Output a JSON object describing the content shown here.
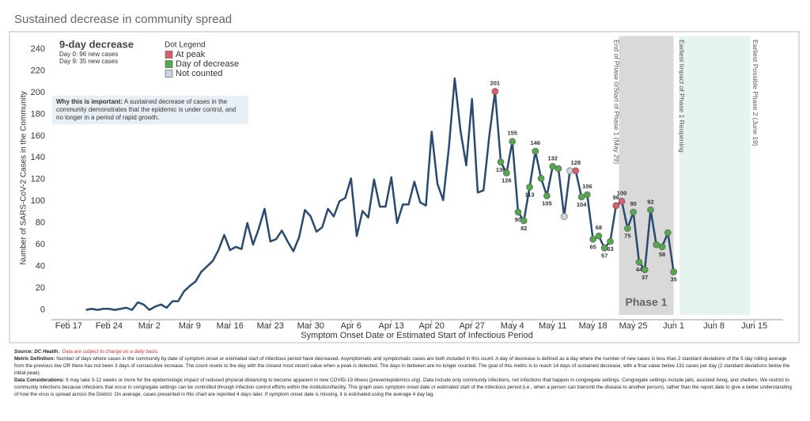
{
  "chart_data": {
    "type": "line",
    "title": "Sustained decrease in community spread",
    "y_label": "Number of SARS-CoV-2 Cases in the Community",
    "x_label": "Symptom Onset Date or Estimated Start of Infectious Period",
    "color": "#2b4a6e",
    "x": [
      3,
      4,
      5,
      6,
      7,
      8,
      9,
      10,
      11,
      12,
      13,
      14,
      15,
      16,
      17,
      18,
      19,
      20,
      21,
      22,
      23,
      24,
      25,
      26,
      27,
      28,
      29,
      30,
      31,
      32,
      33,
      34,
      35,
      36,
      37,
      38,
      39,
      40,
      41,
      42,
      43,
      44,
      45,
      46,
      47,
      48,
      49,
      50,
      51,
      52,
      53,
      54,
      55,
      56,
      57,
      58,
      59,
      60,
      61,
      62,
      63,
      64,
      65,
      66,
      67,
      68,
      69,
      70,
      71,
      72,
      73,
      74,
      75,
      76,
      77,
      78,
      79,
      80,
      81,
      82,
      83,
      84,
      85,
      86,
      87,
      88,
      89,
      90,
      91,
      92,
      93,
      94,
      95,
      96,
      97,
      98,
      99,
      100,
      101,
      102,
      103,
      104,
      105
    ],
    "values": [
      0,
      1,
      0,
      1,
      1,
      0,
      1,
      2,
      0,
      7,
      5,
      0,
      3,
      5,
      2,
      8,
      8,
      17,
      22,
      26,
      35,
      40,
      45,
      55,
      69,
      55,
      58,
      56,
      80,
      60,
      75,
      93,
      63,
      65,
      73,
      63,
      54,
      67,
      92,
      86,
      72,
      76,
      93,
      86,
      100,
      103,
      121,
      68,
      91,
      85,
      120,
      95,
      95,
      122,
      80,
      97,
      97,
      118,
      99,
      96,
      164,
      116,
      101,
      150,
      213,
      165,
      133,
      194,
      108,
      110,
      160,
      201,
      136,
      126,
      155,
      90,
      82,
      113,
      146,
      121,
      105,
      132,
      130,
      86,
      128,
      128,
      104,
      106,
      65,
      68,
      57,
      63,
      96,
      100,
      75,
      90,
      44,
      37,
      92,
      60,
      58,
      71,
      35
    ],
    "dot_status": [
      null,
      null,
      null,
      null,
      null,
      null,
      null,
      null,
      null,
      null,
      null,
      null,
      null,
      null,
      null,
      null,
      null,
      null,
      null,
      null,
      null,
      null,
      null,
      null,
      null,
      null,
      null,
      null,
      null,
      null,
      null,
      null,
      null,
      null,
      null,
      null,
      null,
      null,
      null,
      null,
      null,
      null,
      null,
      null,
      null,
      null,
      null,
      null,
      null,
      null,
      null,
      null,
      null,
      null,
      null,
      null,
      null,
      null,
      null,
      null,
      null,
      null,
      null,
      null,
      null,
      null,
      null,
      null,
      null,
      null,
      null,
      0,
      1,
      1,
      1,
      1,
      1,
      1,
      1,
      1,
      1,
      1,
      1,
      2,
      2,
      0,
      1,
      1,
      1,
      1,
      1,
      1,
      0,
      0,
      1,
      1,
      1,
      1,
      1,
      1,
      1,
      1,
      1
    ],
    "value_labels": [
      null,
      null,
      null,
      null,
      null,
      null,
      null,
      null,
      null,
      null,
      null,
      null,
      null,
      null,
      null,
      null,
      null,
      null,
      null,
      null,
      null,
      null,
      null,
      null,
      null,
      null,
      null,
      null,
      null,
      null,
      null,
      null,
      null,
      null,
      null,
      null,
      null,
      null,
      null,
      null,
      null,
      null,
      null,
      null,
      null,
      null,
      null,
      null,
      null,
      null,
      null,
      null,
      null,
      null,
      null,
      null,
      null,
      null,
      null,
      null,
      null,
      null,
      null,
      null,
      null,
      null,
      null,
      null,
      null,
      null,
      null,
      "201",
      "136",
      "126",
      "155",
      "90",
      "82",
      "113",
      "146",
      null,
      "105",
      "132",
      null,
      null,
      null,
      "128",
      "104",
      "106",
      "65",
      "68",
      "57",
      "63",
      "96",
      "100",
      "75",
      "90",
      "44",
      "37",
      "92",
      null,
      "58",
      null,
      "35"
    ],
    "xlim": [
      -3,
      124
    ],
    "xticks": [
      {
        "value": 0,
        "label": "Feb 17"
      },
      {
        "value": 7,
        "label": "Feb 24"
      },
      {
        "value": 14,
        "label": "Mar 2"
      },
      {
        "value": 21,
        "label": "Mar 9"
      },
      {
        "value": 28,
        "label": "Mar 16"
      },
      {
        "value": 35,
        "label": "Mar 23"
      },
      {
        "value": 42,
        "label": "Mar 30"
      },
      {
        "value": 49,
        "label": "Apr 6"
      },
      {
        "value": 56,
        "label": "Apr 13"
      },
      {
        "value": 63,
        "label": "Apr 20"
      },
      {
        "value": 70,
        "label": "Apr 27"
      },
      {
        "value": 77,
        "label": "May 4"
      },
      {
        "value": 84,
        "label": "May 11"
      },
      {
        "value": 91,
        "label": "May 18"
      },
      {
        "value": 98,
        "label": "May 25"
      },
      {
        "value": 105,
        "label": "Jun 1"
      },
      {
        "value": 112,
        "label": "Jun 8"
      },
      {
        "value": 119,
        "label": "Jun 15"
      }
    ],
    "ylim": [
      -9,
      252
    ],
    "yticks": [
      0,
      20,
      40,
      60,
      80,
      100,
      120,
      140,
      160,
      180,
      200,
      220,
      240
    ],
    "dot_legend": {
      "title": "Dot Legend",
      "items": [
        {
          "name": "At peak",
          "color": "#d9606a"
        },
        {
          "name": "Day of decrease",
          "color": "#55a84f"
        },
        {
          "name": "Not counted",
          "color": "#c9d6df"
        }
      ]
    },
    "info": {
      "title": "9-day decrease",
      "lines": [
        "Day 0: 96 new cases",
        "Day 9: 35 new cases"
      ]
    },
    "note": {
      "heading": "Why this is important:",
      "text": "A sustained decrease of cases in the community demonstrates that the epidemic is under control, and no longer in a period of rapid growth."
    },
    "regions": [
      {
        "label": "Phase 1",
        "start": 95.5,
        "end": 105,
        "color": "#d9d9d9"
      },
      {
        "start": 106,
        "end": 118.3,
        "color": "#e6f4ef"
      }
    ],
    "annotations": [
      {
        "label": "End of Phase 0/Start of Phase 1 (May 29)",
        "x": 95
      },
      {
        "label": "Earliest Impact of Phase 1 Reopening",
        "x": 106.3
      },
      {
        "label": "Earliest Possible Phase 2 (June 19)",
        "x": 119.1
      }
    ]
  },
  "footer": {
    "source": {
      "label": "Source: DC Health.",
      "text": "Data are subject to change on a daily basis."
    },
    "metric": {
      "label": "Metric Definition:",
      "text": "Number of days where cases in the community by date of symptom onset or estimated start of infectious period have decreased. Asymptomatic and symptomatic cases are both included in this count. A day of decrease is defined as a day where the number of new cases is less than 2 standard deviations of the 5 day rolling average from the previous low OR there has not been 3 days of consecutive increase. The count resets to the day with the closest most recent value when a peak is detected. The days in between are no longer counted. The goal of this metric is to reach 14 days of sustained decrease, with a final value below 131 cases per day (2 standard deviations below the initial peak)."
    },
    "considerations": {
      "label": "Data Considerations:",
      "text": "It may take 3-12 weeks or more for the epidemiologic impact of reduced physical distancing to become apparent in new COVID-19 illness (preventepidemics.org). Data include only community infections, not infections that happen in congregate settings. Congregate settings include jails, assisted living, and shelters. We restrict to community infections because infections that occur in congregate settings can be controlled through infection control efforts within the institution/facility. This graph uses symptom onset date or estimated start of the infectious period (i.e., when a person can transmit the disease to another person), rather than the report date to give a better understanding of how the virus is spread across the District. On average, cases presented in this chart are reported 4 days later. If symptom onset date is missing, it is estimated using the average 4 day lag."
    }
  }
}
